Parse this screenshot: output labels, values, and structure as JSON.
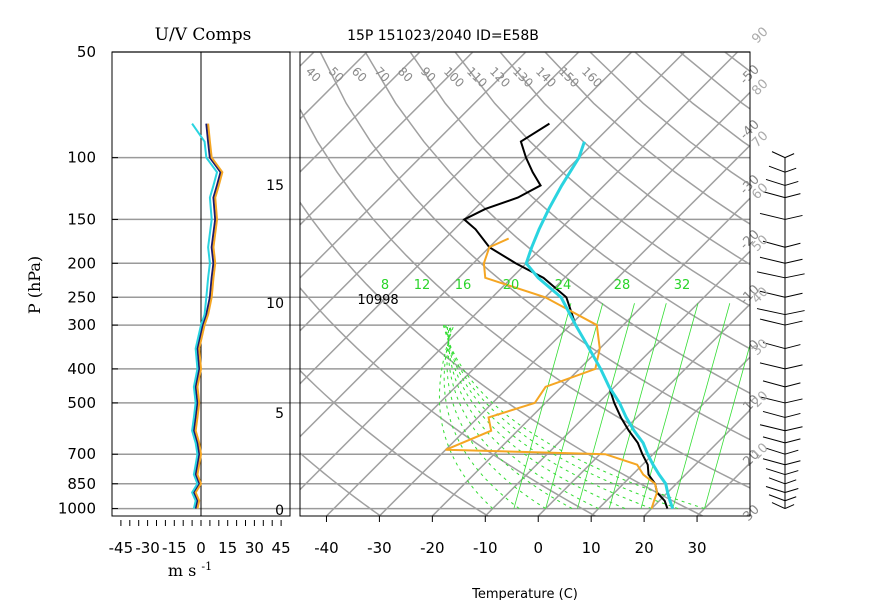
{
  "chart_data": [
    {
      "type": "line",
      "title": "U/V Comps",
      "xlabel": "m s",
      "xlabel_exponent": "-1",
      "ylabel": "P (hPa)",
      "y_scale": "log",
      "ylim": [
        1000,
        50
      ],
      "xlim": [
        -50,
        50
      ],
      "x_ticks": [
        "-45",
        "-30",
        "-15",
        "0",
        "15",
        "30",
        "45"
      ],
      "y_ticks": [
        "50",
        "100",
        "150",
        "200",
        "250",
        "300",
        "400",
        "500",
        "700",
        "850",
        "1000"
      ],
      "grid": true,
      "series": [
        {
          "color": "#1a1a6e",
          "pressure": [
            1000,
            950,
            900,
            850,
            800,
            750,
            700,
            650,
            600,
            550,
            500,
            450,
            400,
            350,
            300,
            280,
            250,
            220,
            200,
            180,
            150,
            130,
            120,
            110,
            100,
            90,
            80
          ],
          "values": [
            -3,
            -2,
            -4,
            -1,
            -3,
            -2,
            -1,
            -2,
            -4,
            -3,
            -2,
            -3,
            -1,
            -2,
            1,
            3,
            5,
            6,
            7,
            6,
            8,
            7,
            9,
            11,
            5,
            4,
            3
          ]
        },
        {
          "color": "#f5a623",
          "pressure": [
            1000,
            950,
            900,
            850,
            800,
            750,
            700,
            650,
            600,
            550,
            500,
            450,
            400,
            350,
            300,
            280,
            250,
            220,
            200,
            180,
            150,
            130,
            120,
            110,
            100,
            90,
            80
          ],
          "values": [
            -2,
            -1,
            -3,
            0,
            -2,
            -1,
            0,
            -1,
            -3,
            -2,
            -1,
            -2,
            0,
            -1,
            2,
            4,
            6,
            7,
            8,
            7,
            9,
            8,
            10,
            12,
            6,
            5,
            4
          ]
        },
        {
          "color": "#2ad4e0",
          "pressure": [
            1000,
            950,
            900,
            850,
            800,
            750,
            700,
            650,
            600,
            550,
            500,
            450,
            400,
            350,
            300,
            280,
            250,
            220,
            200,
            180,
            150,
            130,
            120,
            110,
            100,
            90,
            80
          ],
          "values": [
            -4,
            -3,
            -5,
            -2,
            -4,
            -3,
            -2,
            -3,
            -5,
            -4,
            -3,
            -4,
            -2,
            -3,
            0,
            2,
            3,
            4,
            5,
            4,
            6,
            5,
            7,
            9,
            3,
            2,
            -5
          ]
        }
      ]
    },
    {
      "type": "line",
      "title": "15P 151023/2040 ID=E58B",
      "xlabel": "Temperature (C)",
      "xlim": [
        -45,
        40
      ],
      "x_ticks": [
        "-40",
        "-30",
        "-20",
        "-10",
        "0",
        "10",
        "20",
        "30"
      ],
      "height_axis_labels": [
        "0",
        "5",
        "10",
        "15"
      ],
      "height_axis_unit": "km",
      "isotherm_labels": [
        "-50",
        "-40",
        "-30",
        "-20",
        "-10",
        "0",
        "10",
        "20",
        "30"
      ],
      "theta_labels": [
        "40",
        "50",
        "60",
        "70",
        "80",
        "90",
        "100",
        "110",
        "120",
        "130",
        "140",
        "150",
        "160"
      ],
      "mixing_ratio_labels": [
        "8",
        "12",
        "16",
        "20",
        "24",
        "28",
        "32"
      ],
      "tropopause_annotation": "10998",
      "series": [
        {
          "name": "temperature",
          "color": "#000000",
          "points": [
            [
              23,
              1000
            ],
            [
              21,
              950
            ],
            [
              18,
              900
            ],
            [
              16,
              850
            ],
            [
              13,
              800
            ],
            [
              11,
              750
            ],
            [
              8,
              700
            ],
            [
              5,
              650
            ],
            [
              1,
              600
            ],
            [
              -3,
              550
            ],
            [
              -7,
              500
            ],
            [
              -11,
              450
            ],
            [
              -16,
              400
            ],
            [
              -22,
              350
            ],
            [
              -29,
              300
            ],
            [
              -36,
              250
            ],
            [
              -44,
              220
            ],
            [
              -52,
              200
            ],
            [
              -60,
              180
            ],
            [
              -66,
              160
            ],
            [
              -70,
              150
            ],
            [
              -68,
              140
            ],
            [
              -64,
              130
            ],
            [
              -62,
              120
            ],
            [
              -66,
              110
            ],
            [
              -70,
              100
            ],
            [
              -74,
              90
            ],
            [
              -72,
              80
            ]
          ]
        },
        {
          "name": "dewpoint",
          "color": "#f5a623",
          "points": [
            [
              20,
              1000
            ],
            [
              19,
              950
            ],
            [
              18,
              900
            ],
            [
              16,
              850
            ],
            [
              12,
              800
            ],
            [
              9,
              750
            ],
            [
              1,
              700
            ],
            [
              -30,
              680
            ],
            [
              -25,
              600
            ],
            [
              -28,
              550
            ],
            [
              -22,
              500
            ],
            [
              -23,
              450
            ],
            [
              -17,
              400
            ],
            [
              -20,
              350
            ],
            [
              -25,
              300
            ],
            [
              -40,
              250
            ],
            [
              -55,
              220
            ],
            [
              -58,
              200
            ],
            [
              -60,
              180
            ],
            [
              -58,
              170
            ]
          ]
        },
        {
          "name": "parcel",
          "color": "#2ad4e0",
          "points": [
            [
              24,
              1000
            ],
            [
              22,
              950
            ],
            [
              20,
              900
            ],
            [
              18,
              850
            ],
            [
              15,
              800
            ],
            [
              12,
              750
            ],
            [
              9,
              700
            ],
            [
              6,
              650
            ],
            [
              2,
              600
            ],
            [
              -2,
              550
            ],
            [
              -6,
              500
            ],
            [
              -11,
              450
            ],
            [
              -16,
              400
            ],
            [
              -22,
              350
            ],
            [
              -29,
              300
            ],
            [
              -37,
              250
            ],
            [
              -45,
              220
            ],
            [
              -50,
              200
            ],
            [
              -52,
              180
            ],
            [
              -54,
              160
            ],
            [
              -56,
              140
            ],
            [
              -58,
              120
            ],
            [
              -60,
              100
            ],
            [
              -62,
              90
            ]
          ]
        }
      ]
    }
  ],
  "wind_profile": {
    "label_color": "#aaaaaa",
    "pressure_levels": [
      1000,
      950,
      900,
      850,
      800,
      750,
      700,
      650,
      600,
      550,
      500,
      450,
      400,
      350,
      300,
      280,
      250,
      220,
      200,
      180,
      150,
      130,
      120,
      110,
      100
    ],
    "speeds_kt": [
      5,
      10,
      15,
      10,
      15,
      20,
      15,
      20,
      25,
      20,
      25,
      20,
      25,
      20,
      25,
      30,
      25,
      30,
      25,
      20,
      25,
      20,
      15,
      10,
      5
    ],
    "height_labels": [
      "10",
      "20",
      "30",
      "40",
      "50",
      "60",
      "70",
      "80",
      "90",
      "100"
    ]
  }
}
